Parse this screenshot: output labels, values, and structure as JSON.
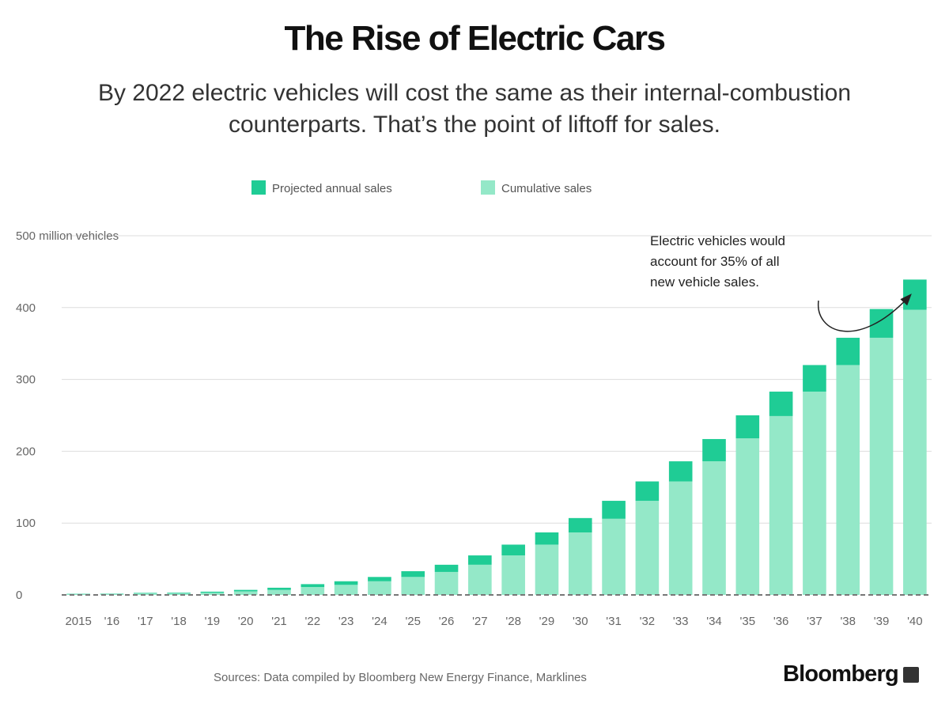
{
  "header": {
    "title": "The Rise of Electric Cars",
    "subtitle": "By 2022 electric vehicles will cost the same as their internal-combustion counterparts. That’s the point of liftoff for sales."
  },
  "chart_data": {
    "type": "bar",
    "stacked": true,
    "categories": [
      "2015",
      "'16",
      "'17",
      "'18",
      "'19",
      "'20",
      "'21",
      "'22",
      "'23",
      "'24",
      "'25",
      "'26",
      "'27",
      "'28",
      "'29",
      "'30",
      "'31",
      "'32",
      "'33",
      "'34",
      "'35",
      "'36",
      "'37",
      "'38",
      "'39",
      "'40"
    ],
    "series": [
      {
        "name": "Cumulative sales",
        "color": "#94e8c8",
        "values": [
          1,
          1,
          2,
          2,
          3,
          5,
          7,
          11,
          14,
          19,
          25,
          32,
          42,
          55,
          70,
          87,
          106,
          131,
          158,
          186,
          218,
          249,
          283,
          320,
          358,
          397
        ]
      },
      {
        "name": "Projected annual sales",
        "color": "#1fcc95",
        "values": [
          0.5,
          0.6,
          0.8,
          1,
          1.5,
          2,
          3,
          4,
          5,
          6,
          8,
          10,
          13,
          15,
          17,
          20,
          25,
          27,
          28,
          31,
          32,
          34,
          37,
          38,
          40,
          42
        ]
      }
    ],
    "legend": [
      "Projected annual sales",
      "Cumulative sales"
    ],
    "legend_colors": [
      "#1fcc95",
      "#94e8c8"
    ],
    "ylabel": "500 million vehicles",
    "yticks": [
      0,
      100,
      200,
      300,
      400
    ],
    "ylim": [
      0,
      500
    ],
    "grid": true,
    "annotation": {
      "lines": [
        "Electric vehicles would",
        "account for 35% of all",
        "new vehicle sales."
      ]
    }
  },
  "footer": {
    "sources": "Sources: Data compiled by Bloomberg New Energy Finance, Marklines",
    "brand": "Bloomberg"
  }
}
